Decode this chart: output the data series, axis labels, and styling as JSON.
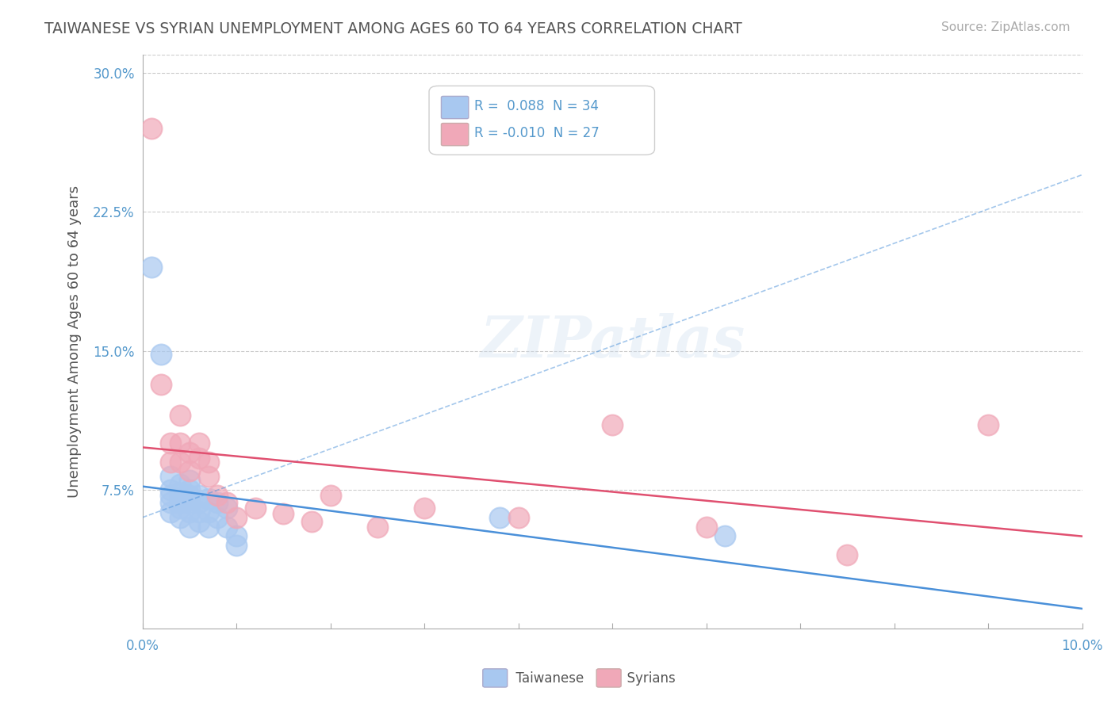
{
  "title": "TAIWANESE VS SYRIAN UNEMPLOYMENT AMONG AGES 60 TO 64 YEARS CORRELATION CHART",
  "source": "Source: ZipAtlas.com",
  "ylabel": "Unemployment Among Ages 60 to 64 years",
  "xlim": [
    0.0,
    0.1
  ],
  "ylim": [
    0.0,
    0.31
  ],
  "yticks": [
    0.0,
    0.075,
    0.15,
    0.225,
    0.3
  ],
  "ytick_labels": [
    "",
    "7.5%",
    "15.0%",
    "22.5%",
    "30.0%"
  ],
  "watermark": "ZIPatlas",
  "legend_box": {
    "taiwanese": {
      "R": 0.088,
      "N": 34
    },
    "syrians": {
      "R": -0.01,
      "N": 27
    }
  },
  "taiwanese_color": "#a8c8f0",
  "syrian_color": "#f0a8b8",
  "taiwanese_line_color": "#4a90d9",
  "syrian_line_color": "#e05070",
  "background_color": "#ffffff",
  "grid_color": "#cccccc",
  "taiwanese_data": [
    [
      0.001,
      0.195
    ],
    [
      0.002,
      0.148
    ],
    [
      0.003,
      0.082
    ],
    [
      0.003,
      0.075
    ],
    [
      0.003,
      0.072
    ],
    [
      0.003,
      0.068
    ],
    [
      0.003,
      0.063
    ],
    [
      0.004,
      0.078
    ],
    [
      0.004,
      0.073
    ],
    [
      0.004,
      0.07
    ],
    [
      0.004,
      0.068
    ],
    [
      0.004,
      0.065
    ],
    [
      0.004,
      0.06
    ],
    [
      0.005,
      0.08
    ],
    [
      0.005,
      0.075
    ],
    [
      0.005,
      0.072
    ],
    [
      0.005,
      0.068
    ],
    [
      0.005,
      0.063
    ],
    [
      0.005,
      0.055
    ],
    [
      0.006,
      0.072
    ],
    [
      0.006,
      0.068
    ],
    [
      0.006,
      0.063
    ],
    [
      0.006,
      0.058
    ],
    [
      0.007,
      0.07
    ],
    [
      0.007,
      0.063
    ],
    [
      0.007,
      0.055
    ],
    [
      0.008,
      0.068
    ],
    [
      0.008,
      0.06
    ],
    [
      0.009,
      0.065
    ],
    [
      0.009,
      0.055
    ],
    [
      0.01,
      0.05
    ],
    [
      0.01,
      0.045
    ],
    [
      0.038,
      0.06
    ],
    [
      0.062,
      0.05
    ]
  ],
  "syrian_data": [
    [
      0.001,
      0.27
    ],
    [
      0.002,
      0.132
    ],
    [
      0.003,
      0.1
    ],
    [
      0.003,
      0.09
    ],
    [
      0.004,
      0.115
    ],
    [
      0.004,
      0.1
    ],
    [
      0.004,
      0.09
    ],
    [
      0.005,
      0.095
    ],
    [
      0.005,
      0.085
    ],
    [
      0.006,
      0.1
    ],
    [
      0.006,
      0.092
    ],
    [
      0.007,
      0.09
    ],
    [
      0.007,
      0.082
    ],
    [
      0.008,
      0.072
    ],
    [
      0.009,
      0.068
    ],
    [
      0.01,
      0.06
    ],
    [
      0.012,
      0.065
    ],
    [
      0.015,
      0.062
    ],
    [
      0.018,
      0.058
    ],
    [
      0.02,
      0.072
    ],
    [
      0.025,
      0.055
    ],
    [
      0.03,
      0.065
    ],
    [
      0.04,
      0.06
    ],
    [
      0.05,
      0.11
    ],
    [
      0.06,
      0.055
    ],
    [
      0.075,
      0.04
    ],
    [
      0.09,
      0.11
    ]
  ]
}
